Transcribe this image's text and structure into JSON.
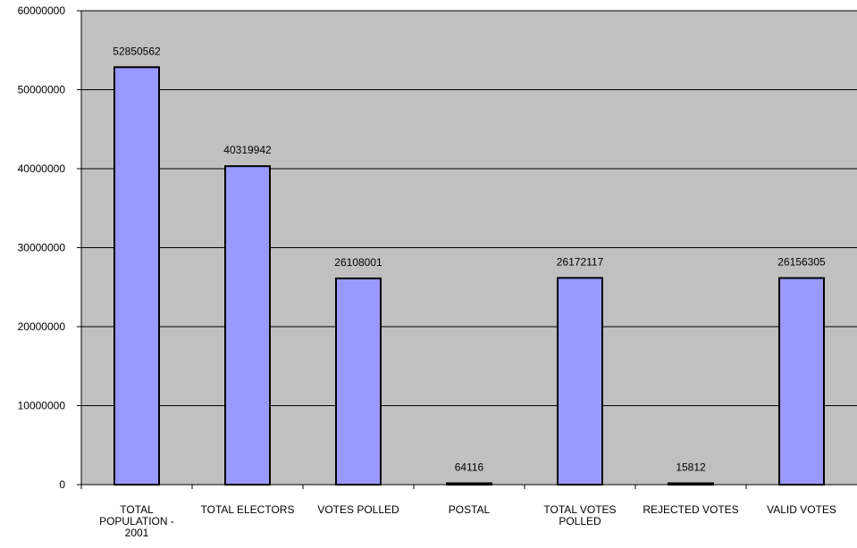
{
  "chart_data": {
    "type": "bar",
    "categories": [
      [
        "TOTAL",
        "POPULATION -",
        "2001"
      ],
      [
        "TOTAL ELECTORS"
      ],
      [
        "VOTES POLLED"
      ],
      [
        "POSTAL"
      ],
      [
        "TOTAL VOTES",
        "POLLED"
      ],
      [
        "REJECTED VOTES"
      ],
      [
        "VALID VOTES"
      ]
    ],
    "values": [
      52850562,
      40319942,
      26108001,
      64116,
      26172117,
      15812,
      26156305
    ],
    "data_labels": [
      "52850562",
      "40319942",
      "26108001",
      "64116",
      "26172117",
      "15812",
      "26156305"
    ],
    "y_ticks": [
      0,
      10000000,
      20000000,
      30000000,
      40000000,
      50000000,
      60000000
    ],
    "y_tick_labels": [
      "0",
      "10000000",
      "20000000",
      "30000000",
      "40000000",
      "50000000",
      "60000000"
    ],
    "ylim": [
      0,
      60000000
    ],
    "grid": true,
    "legend": "none",
    "colors": {
      "plot_background": "#c0c0c0",
      "bar_fill": "#9999ff",
      "bar_stroke": "#000000",
      "gridline": "#000000"
    }
  }
}
